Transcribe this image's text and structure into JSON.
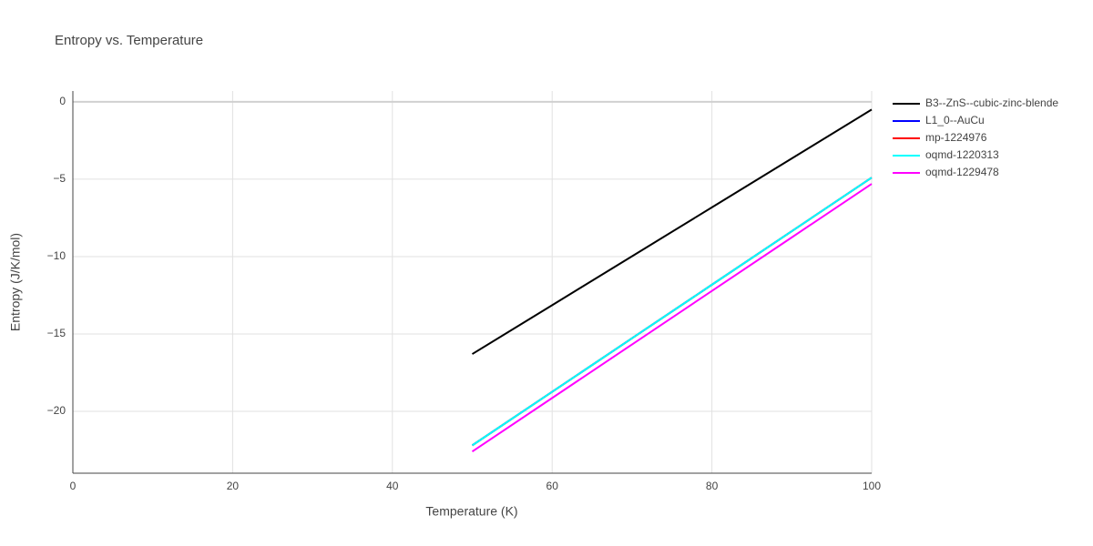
{
  "chart_data": {
    "type": "line",
    "title": "Entropy vs. Temperature",
    "x_label": "Temperature (K)",
    "y_label": "Entropy (J/K/mol)",
    "x": [
      50,
      60,
      70,
      80,
      90,
      100
    ],
    "series": [
      {
        "name": "B3--ZnS--cubic-zinc-blende",
        "color": "#000000",
        "values": [
          -16.3,
          -13.14,
          -9.98,
          -6.82,
          -3.66,
          -0.5
        ]
      },
      {
        "name": "L1_0--AuCu",
        "color": "#0000ff",
        "values": [
          -22.2,
          -18.74,
          -15.28,
          -11.82,
          -8.36,
          -4.9
        ]
      },
      {
        "name": "mp-1224976",
        "color": "#ff0000",
        "values": [
          -22.2,
          -18.74,
          -15.28,
          -11.82,
          -8.36,
          -4.9
        ]
      },
      {
        "name": "oqmd-1220313",
        "color": "#00ffff",
        "values": [
          -22.2,
          -18.74,
          -15.28,
          -11.82,
          -8.36,
          -4.9
        ]
      },
      {
        "name": "oqmd-1229478",
        "color": "#ff00ff",
        "values": [
          -22.6,
          -19.14,
          -15.68,
          -12.22,
          -8.76,
          -5.3
        ]
      }
    ],
    "xlim": [
      0,
      100
    ],
    "xticks": [
      0,
      20,
      40,
      60,
      80,
      100
    ],
    "ylim": [
      -24,
      0.7
    ],
    "yticks": [
      {
        "value": -20,
        "label": "−20"
      },
      {
        "value": -15,
        "label": "−15"
      },
      {
        "value": -10,
        "label": "−10"
      },
      {
        "value": -5,
        "label": "−5"
      },
      0
    ],
    "grid": true,
    "legend": "right"
  }
}
